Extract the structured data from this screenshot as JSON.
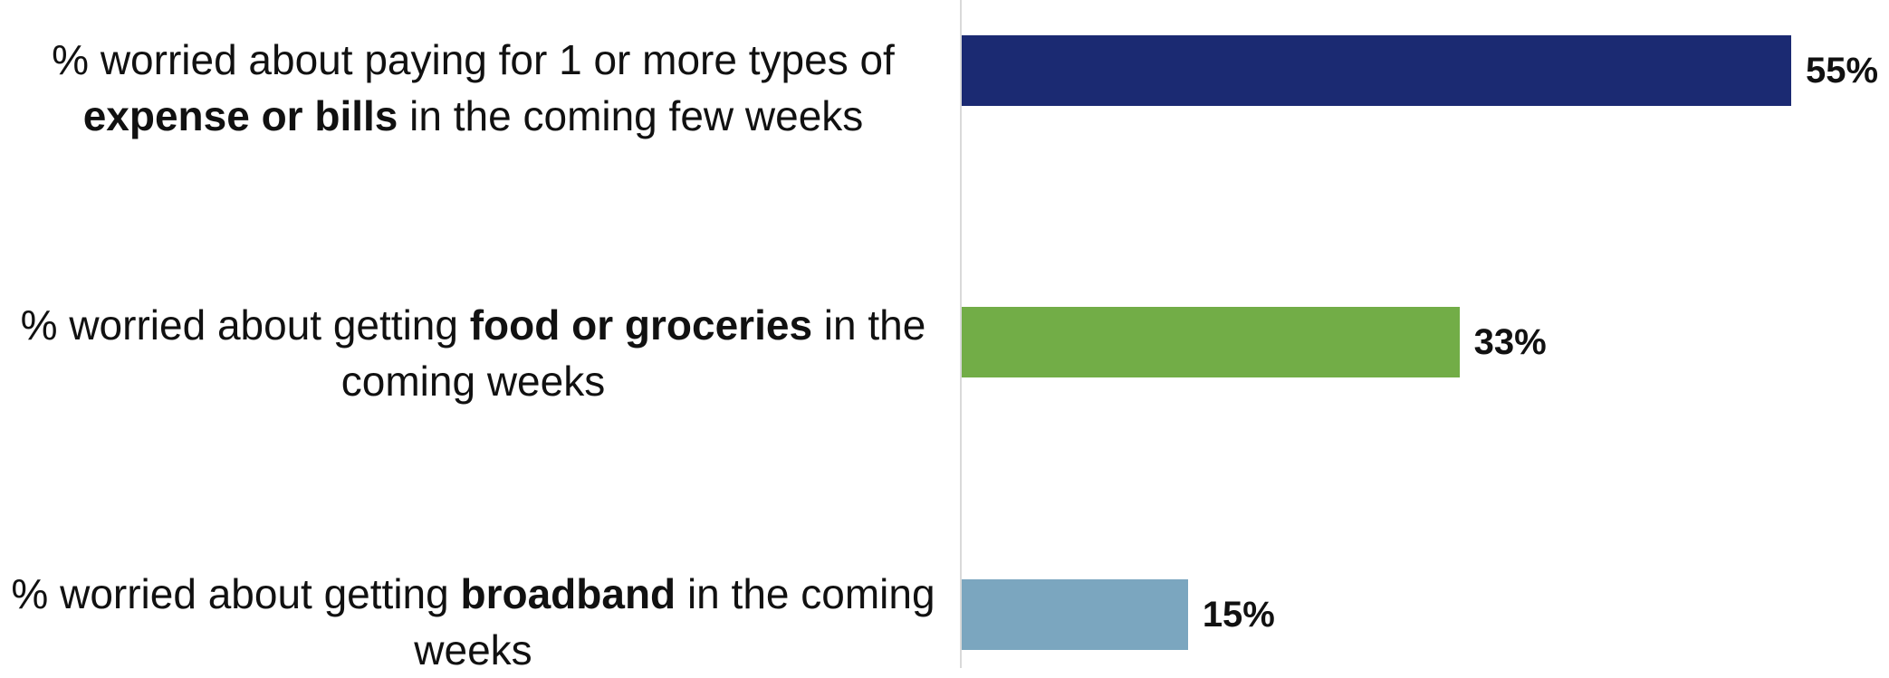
{
  "chart_data": {
    "type": "bar",
    "orientation": "horizontal",
    "categories": [
      "% worried about paying for 1 or more types of expense or bills in the coming few weeks",
      "% worried about getting food or groceries in the coming weeks",
      "% worried about getting broadband in the coming weeks"
    ],
    "category_segments": [
      [
        {
          "text": "% worried about paying for 1 or more types of ",
          "bold": false
        },
        {
          "text": "expense or bills",
          "bold": true
        },
        {
          "text": " in the coming few weeks",
          "bold": false
        }
      ],
      [
        {
          "text": "% worried about getting ",
          "bold": false
        },
        {
          "text": "food or groceries",
          "bold": true
        },
        {
          "text": " in the coming weeks",
          "bold": false
        }
      ],
      [
        {
          "text": "% worried about getting ",
          "bold": false
        },
        {
          "text": "broadband",
          "bold": true
        },
        {
          "text": " in the coming weeks",
          "bold": false
        }
      ]
    ],
    "values": [
      55,
      33,
      15
    ],
    "value_labels": [
      "55%",
      "33%",
      "15%"
    ],
    "colors": [
      "#1b2a72",
      "#72ad47",
      "#7ba6bf"
    ],
    "xlim": [
      0,
      55
    ],
    "grid": false,
    "legend": "none",
    "title": "",
    "xlabel": "",
    "ylabel": ""
  }
}
